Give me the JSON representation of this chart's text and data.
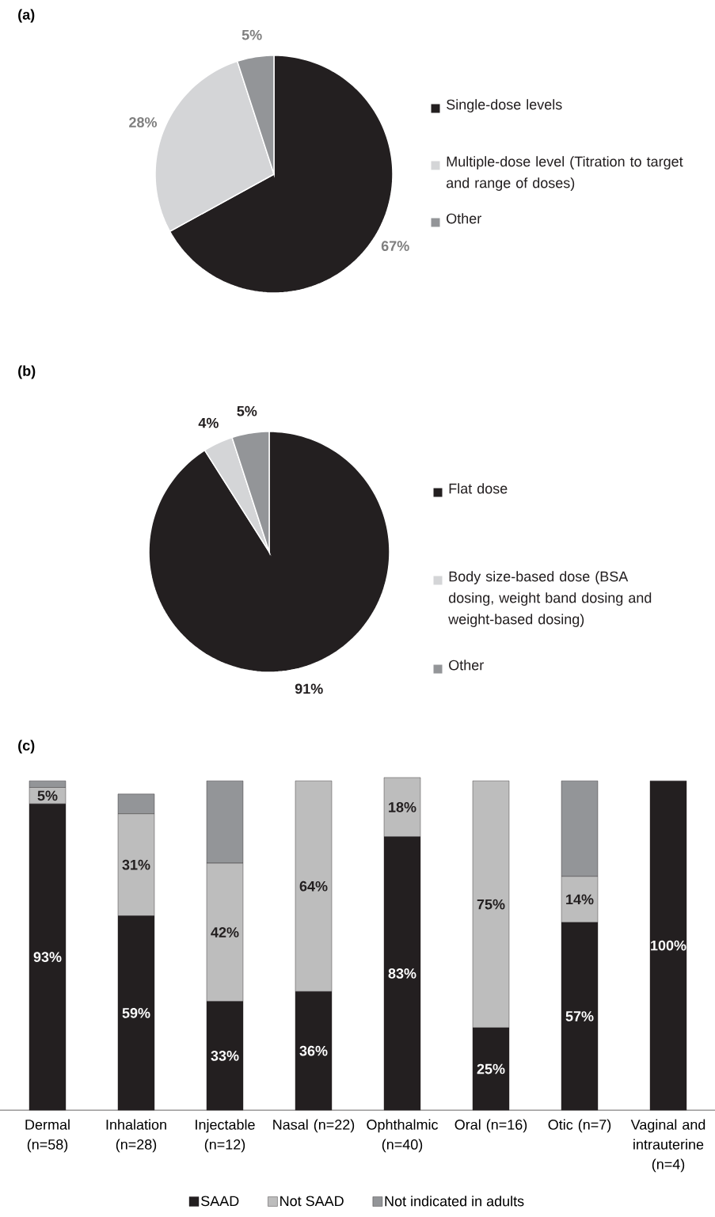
{
  "chart_data": [
    {
      "type": "pie",
      "title": "(a)",
      "categories": [
        "Single-dose levels",
        "Multiple-dose level (Titration to target and range of doses)",
        "Other"
      ],
      "values": [
        67,
        28,
        5
      ],
      "colors": [
        "#231f20",
        "#d4d5d7",
        "#939598"
      ],
      "value_labels": [
        "67%",
        "28%",
        "5%"
      ],
      "legend": "right"
    },
    {
      "type": "pie",
      "title": "(b)",
      "categories": [
        "Flat dose",
        "Body size-based dose (BSA dosing, weight band dosing and weight-based dosing)",
        "Other"
      ],
      "values": [
        91,
        4,
        5
      ],
      "colors": [
        "#231f20",
        "#d4d5d7",
        "#939598"
      ],
      "value_labels": [
        "91%",
        "4%",
        "5%"
      ],
      "legend": "right"
    },
    {
      "type": "bar",
      "title": "(c)",
      "stacked": true,
      "legend": "bottom",
      "categories": [
        "Dermal (n=58)",
        "Inhalation (n=28)",
        "Injectable (n=12)",
        "Nasal (n=22)",
        "Ophthalmic (n=40)",
        "Oral (n=16)",
        "Otic (n=7)",
        "Vaginal and intrauterine (n=4)"
      ],
      "series": [
        {
          "name": "SAAD",
          "color": "#231f20",
          "values": [
            93,
            59,
            33,
            36,
            83,
            25,
            57,
            100
          ],
          "value_labels": [
            "93%",
            "59%",
            "33%",
            "36%",
            "83%",
            "25%",
            "57%",
            "100%"
          ]
        },
        {
          "name": "Not SAAD",
          "color": "#bdbdbd",
          "values": [
            5,
            31,
            42,
            64,
            18,
            75,
            14,
            0
          ],
          "value_labels": [
            "5%",
            "31%",
            "42%",
            "64%",
            "18%",
            "75%",
            "14%",
            null
          ]
        },
        {
          "name": "Not indicated in adults",
          "color": "#939598",
          "values": [
            2,
            6,
            25,
            0,
            0,
            0,
            29,
            0
          ],
          "value_labels": [
            null,
            null,
            null,
            null,
            null,
            null,
            null,
            null
          ]
        }
      ]
    }
  ]
}
